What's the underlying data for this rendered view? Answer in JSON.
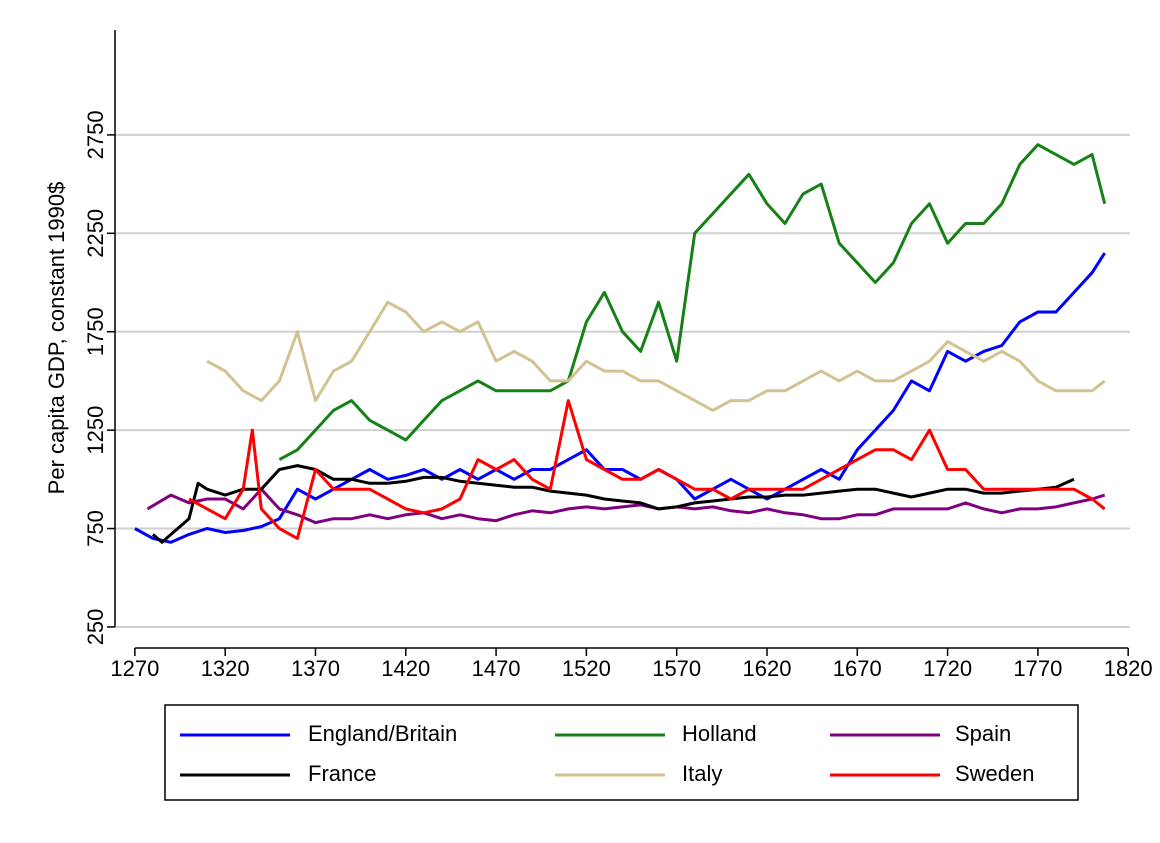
{
  "chart_data": {
    "type": "line",
    "y_label": "Per capita GDP, constant 1990$",
    "xlim": [
      1259,
      1821
    ],
    "xticks": [
      1270,
      1320,
      1370,
      1420,
      1470,
      1520,
      1570,
      1620,
      1670,
      1720,
      1770,
      1820
    ],
    "ylim": [
      143,
      3283
    ],
    "yticks": [
      250,
      750,
      1250,
      1750,
      2250,
      2750
    ],
    "grid": true,
    "legend": "bottom",
    "series": [
      {
        "name": "England/Britain",
        "color": "#0000ff",
        "x": [
          1270,
          1280,
          1290,
          1300,
          1310,
          1320,
          1330,
          1340,
          1350,
          1360,
          1370,
          1380,
          1390,
          1400,
          1410,
          1420,
          1430,
          1440,
          1450,
          1460,
          1470,
          1480,
          1490,
          1500,
          1510,
          1520,
          1530,
          1540,
          1550,
          1560,
          1570,
          1580,
          1590,
          1600,
          1610,
          1620,
          1630,
          1640,
          1650,
          1660,
          1670,
          1680,
          1690,
          1700,
          1710,
          1720,
          1730,
          1740,
          1750,
          1760,
          1770,
          1780,
          1790,
          1800,
          1807
        ],
        "values": [
          750,
          700,
          680,
          720,
          750,
          730,
          740,
          760,
          800,
          950,
          900,
          950,
          1000,
          1050,
          1000,
          1020,
          1050,
          1000,
          1050,
          1000,
          1050,
          1000,
          1050,
          1050,
          1100,
          1150,
          1050,
          1050,
          1000,
          1050,
          1000,
          900,
          950,
          1000,
          950,
          900,
          950,
          1000,
          1050,
          1000,
          1150,
          1250,
          1350,
          1500,
          1450,
          1650,
          1600,
          1650,
          1680,
          1800,
          1850,
          1850,
          1950,
          2050,
          2150
        ]
      },
      {
        "name": "Holland",
        "color": "#178017",
        "x": [
          1350,
          1360,
          1370,
          1380,
          1390,
          1400,
          1410,
          1420,
          1430,
          1440,
          1450,
          1460,
          1470,
          1480,
          1490,
          1500,
          1510,
          1520,
          1530,
          1540,
          1550,
          1560,
          1570,
          1580,
          1590,
          1600,
          1610,
          1620,
          1630,
          1640,
          1650,
          1660,
          1670,
          1680,
          1690,
          1700,
          1710,
          1720,
          1730,
          1740,
          1750,
          1760,
          1770,
          1780,
          1790,
          1800,
          1807
        ],
        "values": [
          1100,
          1150,
          1250,
          1350,
          1400,
          1300,
          1250,
          1200,
          1300,
          1400,
          1450,
          1500,
          1450,
          1450,
          1450,
          1450,
          1500,
          1800,
          1950,
          1750,
          1650,
          1900,
          1600,
          2250,
          2350,
          2450,
          2550,
          2400,
          2300,
          2450,
          2500,
          2200,
          2100,
          2000,
          2100,
          2300,
          2400,
          2200,
          2300,
          2300,
          2400,
          2600,
          2700,
          2650,
          2600,
          2650,
          2400
        ]
      },
      {
        "name": "Spain",
        "color": "#800080",
        "x": [
          1277,
          1290,
          1300,
          1310,
          1320,
          1330,
          1340,
          1350,
          1360,
          1370,
          1380,
          1390,
          1400,
          1410,
          1420,
          1430,
          1440,
          1450,
          1460,
          1470,
          1480,
          1490,
          1500,
          1510,
          1520,
          1530,
          1540,
          1550,
          1560,
          1570,
          1580,
          1590,
          1600,
          1610,
          1620,
          1630,
          1640,
          1650,
          1660,
          1670,
          1680,
          1690,
          1700,
          1710,
          1720,
          1730,
          1740,
          1750,
          1760,
          1770,
          1780,
          1790,
          1800,
          1807
        ],
        "values": [
          850,
          920,
          880,
          900,
          900,
          850,
          950,
          850,
          820,
          780,
          800,
          800,
          820,
          800,
          820,
          830,
          800,
          820,
          800,
          790,
          820,
          840,
          830,
          850,
          860,
          850,
          860,
          870,
          850,
          860,
          850,
          860,
          840,
          830,
          850,
          830,
          820,
          800,
          800,
          820,
          820,
          850,
          850,
          850,
          850,
          880,
          850,
          830,
          850,
          850,
          860,
          880,
          900,
          920
        ]
      },
      {
        "name": "France",
        "color": "#000000",
        "x": [
          1280,
          1285,
          1290,
          1300,
          1305,
          1310,
          1320,
          1330,
          1340,
          1350,
          1360,
          1370,
          1380,
          1390,
          1400,
          1410,
          1420,
          1430,
          1440,
          1450,
          1460,
          1470,
          1480,
          1490,
          1500,
          1510,
          1520,
          1530,
          1540,
          1550,
          1560,
          1570,
          1580,
          1590,
          1600,
          1610,
          1620,
          1630,
          1640,
          1650,
          1660,
          1670,
          1680,
          1690,
          1700,
          1710,
          1720,
          1730,
          1740,
          1750,
          1760,
          1770,
          1780,
          1790
        ],
        "values": [
          720,
          680,
          720,
          800,
          980,
          950,
          920,
          950,
          950,
          1050,
          1070,
          1050,
          1000,
          1000,
          980,
          980,
          990,
          1010,
          1010,
          990,
          980,
          970,
          960,
          960,
          940,
          930,
          920,
          900,
          890,
          880,
          850,
          860,
          880,
          890,
          900,
          910,
          910,
          920,
          920,
          930,
          940,
          950,
          950,
          930,
          910,
          930,
          950,
          950,
          930,
          930,
          940,
          950,
          960,
          1000
        ]
      },
      {
        "name": "Italy",
        "color": "#d3c291",
        "x": [
          1310,
          1320,
          1330,
          1340,
          1350,
          1360,
          1370,
          1380,
          1390,
          1400,
          1410,
          1420,
          1430,
          1440,
          1450,
          1460,
          1470,
          1480,
          1490,
          1500,
          1510,
          1520,
          1530,
          1540,
          1550,
          1560,
          1570,
          1580,
          1590,
          1600,
          1610,
          1620,
          1630,
          1640,
          1650,
          1660,
          1670,
          1680,
          1690,
          1700,
          1710,
          1720,
          1730,
          1740,
          1750,
          1760,
          1770,
          1780,
          1790,
          1800,
          1807
        ],
        "values": [
          1600,
          1550,
          1450,
          1400,
          1500,
          1750,
          1400,
          1550,
          1600,
          1750,
          1900,
          1850,
          1750,
          1800,
          1750,
          1800,
          1600,
          1650,
          1600,
          1500,
          1500,
          1600,
          1550,
          1550,
          1500,
          1500,
          1450,
          1400,
          1350,
          1400,
          1400,
          1450,
          1450,
          1500,
          1550,
          1500,
          1550,
          1500,
          1500,
          1550,
          1600,
          1700,
          1650,
          1600,
          1650,
          1600,
          1500,
          1450,
          1450,
          1450,
          1500
        ]
      },
      {
        "name": "Sweden",
        "color": "#ff0000",
        "x": [
          1300,
          1310,
          1320,
          1330,
          1335,
          1340,
          1350,
          1360,
          1370,
          1380,
          1390,
          1400,
          1410,
          1420,
          1430,
          1440,
          1450,
          1460,
          1470,
          1480,
          1490,
          1500,
          1510,
          1520,
          1530,
          1540,
          1550,
          1560,
          1570,
          1580,
          1590,
          1600,
          1610,
          1620,
          1630,
          1640,
          1650,
          1660,
          1670,
          1680,
          1690,
          1700,
          1710,
          1720,
          1730,
          1740,
          1750,
          1760,
          1770,
          1780,
          1790,
          1800,
          1807
        ],
        "values": [
          900,
          850,
          800,
          950,
          1250,
          850,
          750,
          700,
          1050,
          950,
          950,
          950,
          900,
          850,
          830,
          850,
          900,
          1100,
          1050,
          1100,
          1000,
          950,
          1400,
          1100,
          1050,
          1000,
          1000,
          1050,
          1000,
          950,
          950,
          900,
          950,
          950,
          950,
          950,
          1000,
          1050,
          1100,
          1150,
          1150,
          1100,
          1250,
          1050,
          1050,
          950,
          950,
          950,
          950,
          950,
          950,
          900,
          850
        ]
      }
    ]
  }
}
